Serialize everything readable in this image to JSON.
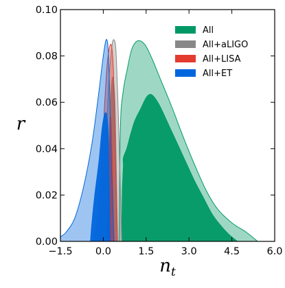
{
  "chart_data": {
    "type": "area",
    "title": "",
    "xlabel": "n",
    "xlabel_sub": "t",
    "ylabel": "r",
    "xlim": [
      -1.5,
      6.0
    ],
    "ylim": [
      0.0,
      0.1
    ],
    "x_ticks": [
      -1.5,
      0.0,
      1.5,
      3.0,
      4.5,
      6.0
    ],
    "x_tick_labels": [
      "−1.5",
      "0.0",
      "1.5",
      "3.0",
      "4.5",
      "6.0"
    ],
    "y_ticks": [
      0.0,
      0.02,
      0.04,
      0.06,
      0.08,
      0.1
    ],
    "y_tick_labels": [
      "0.00",
      "0.02",
      "0.04",
      "0.06",
      "0.08",
      "0.10"
    ],
    "grid": false,
    "legend_position": "top-right",
    "series": [
      {
        "name": "All",
        "color": "#009966",
        "contour_95": [
          [
            0.55,
            0.0
          ],
          [
            0.6,
            0.05
          ],
          [
            0.7,
            0.065
          ],
          [
            0.85,
            0.075
          ],
          [
            1.0,
            0.083
          ],
          [
            1.2,
            0.0865
          ],
          [
            1.45,
            0.085
          ],
          [
            1.7,
            0.079
          ],
          [
            2.0,
            0.07
          ],
          [
            2.4,
            0.058
          ],
          [
            2.8,
            0.045
          ],
          [
            3.2,
            0.033
          ],
          [
            3.6,
            0.022
          ],
          [
            4.0,
            0.014
          ],
          [
            4.5,
            0.008
          ],
          [
            5.0,
            0.004
          ],
          [
            5.4,
            0.0
          ]
        ],
        "contour_68": [
          [
            0.65,
            0.0
          ],
          [
            0.66,
            0.02
          ],
          [
            0.7,
            0.032
          ],
          [
            0.7,
            0.036
          ],
          [
            0.82,
            0.04
          ],
          [
            0.95,
            0.046
          ],
          [
            1.1,
            0.052
          ],
          [
            1.3,
            0.057
          ],
          [
            1.5,
            0.062
          ],
          [
            1.65,
            0.0635
          ],
          [
            1.8,
            0.062
          ],
          [
            2.0,
            0.058
          ],
          [
            2.3,
            0.05
          ],
          [
            2.6,
            0.042
          ],
          [
            2.9,
            0.034
          ],
          [
            3.2,
            0.026
          ],
          [
            3.5,
            0.019
          ],
          [
            3.8,
            0.012
          ],
          [
            4.1,
            0.007
          ],
          [
            4.4,
            0.003
          ],
          [
            4.7,
            0.0
          ]
        ]
      },
      {
        "name": "All+aLIGO",
        "color": "#888888",
        "contour_95": [
          [
            -0.2,
            0.0
          ],
          [
            -0.1,
            0.01
          ],
          [
            0.0,
            0.025
          ],
          [
            0.1,
            0.045
          ],
          [
            0.2,
            0.07
          ],
          [
            0.3,
            0.084
          ],
          [
            0.37,
            0.087
          ],
          [
            0.44,
            0.083
          ],
          [
            0.5,
            0.065
          ],
          [
            0.55,
            0.045
          ],
          [
            0.6,
            0.02
          ],
          [
            0.65,
            0.0
          ]
        ],
        "contour_68": [
          [
            0.12,
            0.0
          ],
          [
            0.18,
            0.03
          ],
          [
            0.25,
            0.06
          ],
          [
            0.33,
            0.071
          ],
          [
            0.41,
            0.06
          ],
          [
            0.46,
            0.03
          ],
          [
            0.5,
            0.0
          ]
        ]
      },
      {
        "name": "All+LISA",
        "color": "#e33b2e",
        "contour_95": [
          [
            -0.3,
            0.0
          ],
          [
            -0.2,
            0.01
          ],
          [
            -0.05,
            0.035
          ],
          [
            0.05,
            0.06
          ],
          [
            0.15,
            0.078
          ],
          [
            0.27,
            0.085
          ],
          [
            0.35,
            0.075
          ],
          [
            0.4,
            0.05
          ],
          [
            0.45,
            0.025
          ],
          [
            0.5,
            0.0
          ]
        ],
        "contour_68": [
          [
            0.15,
            0.0
          ],
          [
            0.2,
            0.025
          ],
          [
            0.24,
            0.05
          ],
          [
            0.28,
            0.052
          ],
          [
            0.32,
            0.035
          ],
          [
            0.35,
            0.015
          ],
          [
            0.37,
            0.0
          ]
        ]
      },
      {
        "name": "All+ET",
        "color": "#0066dd",
        "contour_95": [
          [
            -1.5,
            0.002
          ],
          [
            -1.3,
            0.004
          ],
          [
            -1.0,
            0.01
          ],
          [
            -0.7,
            0.023
          ],
          [
            -0.4,
            0.042
          ],
          [
            -0.15,
            0.065
          ],
          [
            0.0,
            0.08
          ],
          [
            0.1,
            0.087
          ],
          [
            0.17,
            0.083
          ],
          [
            0.22,
            0.065
          ],
          [
            0.27,
            0.04
          ],
          [
            0.32,
            0.02
          ],
          [
            0.38,
            0.0
          ]
        ],
        "contour_68": [
          [
            -0.45,
            0.0
          ],
          [
            -0.4,
            0.008
          ],
          [
            -0.3,
            0.02
          ],
          [
            -0.15,
            0.035
          ],
          [
            -0.05,
            0.048
          ],
          [
            0.05,
            0.055
          ],
          [
            0.13,
            0.054
          ],
          [
            0.18,
            0.045
          ],
          [
            0.2,
            0.03
          ],
          [
            0.22,
            0.015
          ],
          [
            0.24,
            0.0
          ]
        ]
      }
    ]
  }
}
